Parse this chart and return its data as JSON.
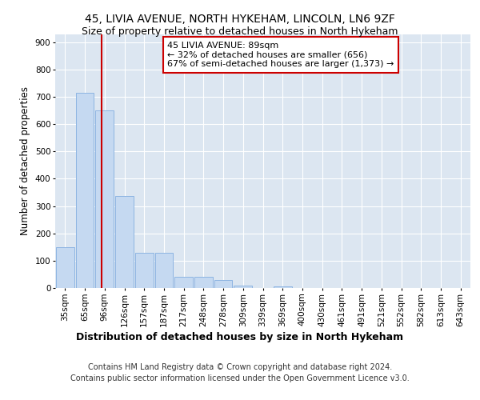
{
  "title_line1": "45, LIVIA AVENUE, NORTH HYKEHAM, LINCOLN, LN6 9ZF",
  "title_line2": "Size of property relative to detached houses in North Hykeham",
  "xlabel": "Distribution of detached houses by size in North Hykeham",
  "ylabel": "Number of detached properties",
  "footnote": "Contains HM Land Registry data © Crown copyright and database right 2024.\nContains public sector information licensed under the Open Government Licence v3.0.",
  "bar_labels": [
    "35sqm",
    "65sqm",
    "96sqm",
    "126sqm",
    "157sqm",
    "187sqm",
    "217sqm",
    "248sqm",
    "278sqm",
    "309sqm",
    "339sqm",
    "369sqm",
    "400sqm",
    "430sqm",
    "461sqm",
    "491sqm",
    "521sqm",
    "552sqm",
    "582sqm",
    "613sqm",
    "643sqm"
  ],
  "bar_values": [
    150,
    715,
    650,
    338,
    130,
    130,
    42,
    42,
    30,
    10,
    0,
    5,
    0,
    0,
    0,
    0,
    0,
    0,
    0,
    0,
    0
  ],
  "bar_color": "#c5d9f1",
  "bar_edge_color": "#8db4e2",
  "vline_x_index": 1.85,
  "vline_color": "#cc0000",
  "annotation_text": "45 LIVIA AVENUE: 89sqm\n← 32% of detached houses are smaller (656)\n67% of semi-detached houses are larger (1,373) →",
  "annotation_box_color": "white",
  "annotation_box_edge_color": "#cc0000",
  "plot_bg_color": "#dce6f1",
  "ylim": [
    0,
    930
  ],
  "yticks": [
    0,
    100,
    200,
    300,
    400,
    500,
    600,
    700,
    800,
    900
  ],
  "grid_color": "white",
  "title_fontsize": 10,
  "subtitle_fontsize": 9,
  "tick_fontsize": 7.5,
  "ylabel_fontsize": 8.5,
  "xlabel_fontsize": 9,
  "annotation_fontsize": 8,
  "footnote_fontsize": 7
}
